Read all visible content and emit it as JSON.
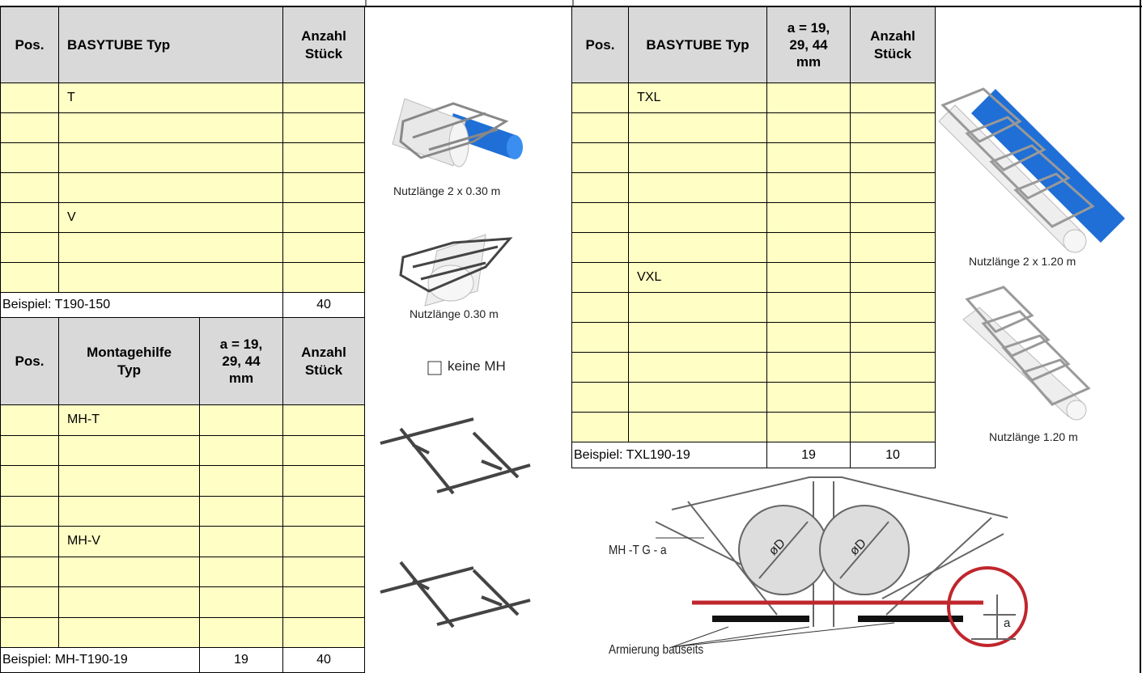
{
  "table_basytube": {
    "headers": [
      "Pos.",
      "BASYTUBE Typ",
      "Anzahl\nStück"
    ],
    "rows": [
      [
        null,
        "T",
        null
      ],
      [
        null,
        null,
        null
      ],
      [
        null,
        null,
        null
      ],
      [
        null,
        null,
        null
      ],
      [
        null,
        "V",
        null
      ],
      [
        null,
        null,
        null
      ],
      [
        null,
        null,
        null
      ]
    ],
    "example": {
      "label": "Beispiel: T190-150",
      "values": [
        40
      ]
    }
  },
  "table_montagehilfe": {
    "headers": [
      "Pos.",
      "Montagehilfe\nTyp",
      "a = 19,\n29, 44\nmm",
      "Anzahl\nStück"
    ],
    "rows": [
      [
        null,
        "MH-T",
        null,
        null
      ],
      [
        null,
        null,
        null,
        null
      ],
      [
        null,
        null,
        null,
        null
      ],
      [
        null,
        null,
        null,
        null
      ],
      [
        null,
        "MH-V",
        null,
        null
      ],
      [
        null,
        null,
        null,
        null
      ],
      [
        null,
        null,
        null,
        null
      ],
      [
        null,
        null,
        null,
        null
      ]
    ],
    "example": {
      "label": "Beispiel: MH-T190-19",
      "values": [
        19,
        40
      ]
    }
  },
  "table_basytube_xl": {
    "headers": [
      "Pos.",
      "BASYTUBE Typ",
      "a = 19,\n29, 44\nmm",
      "Anzahl\nStück"
    ],
    "rows": [
      [
        null,
        "TXL",
        null,
        null
      ],
      [
        null,
        null,
        null,
        null
      ],
      [
        null,
        null,
        null,
        null
      ],
      [
        null,
        null,
        null,
        null
      ],
      [
        null,
        null,
        null,
        null
      ],
      [
        null,
        null,
        null,
        null
      ],
      [
        null,
        "VXL",
        null,
        null
      ],
      [
        null,
        null,
        null,
        null
      ],
      [
        null,
        null,
        null,
        null
      ],
      [
        null,
        null,
        null,
        null
      ],
      [
        null,
        null,
        null,
        null
      ],
      [
        null,
        null,
        null,
        null
      ]
    ],
    "example": {
      "label": "Beispiel: TXL190-19",
      "values": [
        19,
        10
      ]
    }
  },
  "captions": {
    "tube_double": "Nutzlänge 2 x 0.30 m",
    "tube_single": "Nutzlänge 0.30 m",
    "no_mh": "keine MH",
    "tube_xl_double": "Nutzlänge 2 x 1.20 m",
    "tube_xl_single": "Nutzlänge 1.20 m"
  },
  "diagram": {
    "label_mh": "MH -T G - a",
    "diameter_left": "øD",
    "diameter_right": "øD",
    "label_a": "a",
    "label_reinforcement": "Armierung bauseits"
  }
}
